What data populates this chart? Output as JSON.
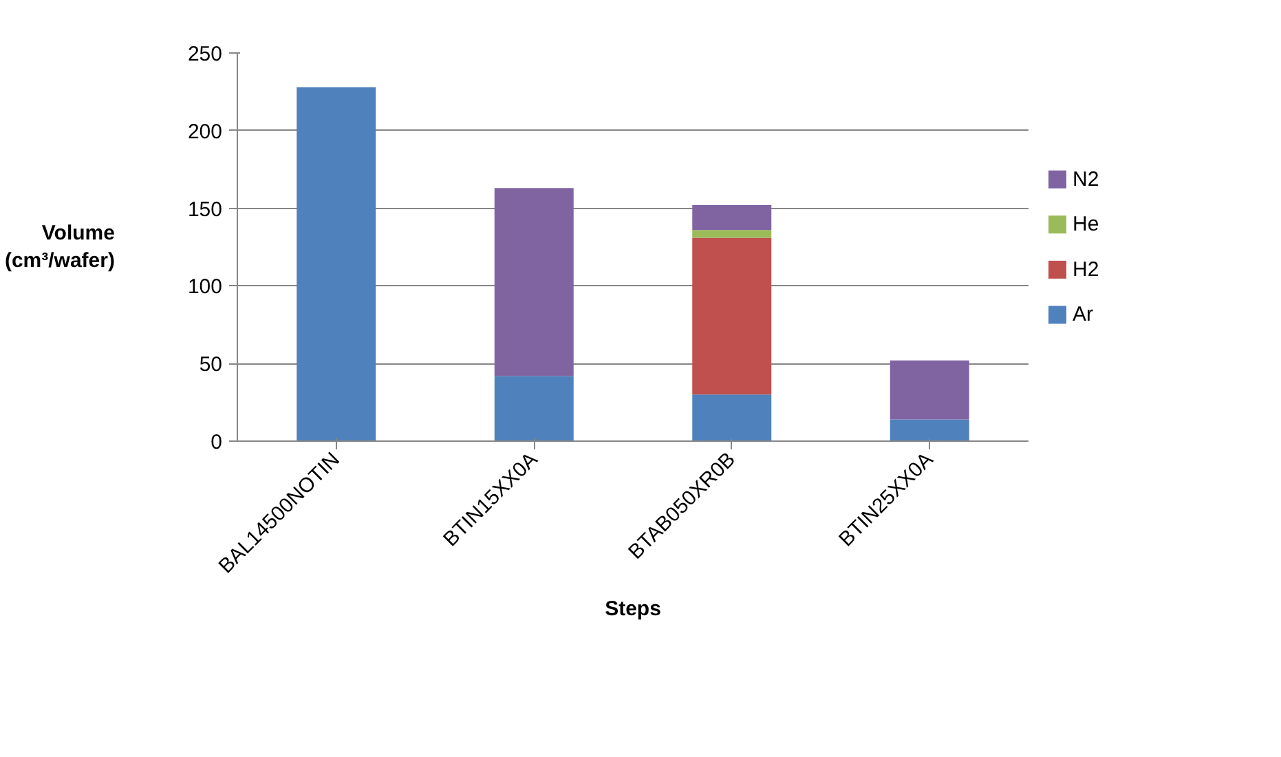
{
  "chart_data": {
    "type": "bar",
    "stacked": true,
    "xlabel": "Steps",
    "ylabel": "Volume\n(cm³/wafer)",
    "categories": [
      "BAL14500NOTIN",
      "BTIN15XX0A",
      "BTAB050XR0B",
      "BTIN25XX0A"
    ],
    "series": [
      {
        "name": "Ar",
        "color": "#4f81bd",
        "values": [
          228,
          42,
          30,
          14
        ]
      },
      {
        "name": "H2",
        "color": "#c0504d",
        "values": [
          null,
          null,
          101,
          null
        ]
      },
      {
        "name": "He",
        "color": "#9bbb59",
        "values": [
          null,
          null,
          5,
          null
        ]
      },
      {
        "name": "N2",
        "color": "#8064a2",
        "values": [
          null,
          121,
          16,
          38
        ]
      }
    ],
    "ylim": [
      0,
      250
    ],
    "yticks": [
      0,
      50,
      100,
      150,
      200,
      250
    ],
    "grid": "y",
    "legend": "right"
  }
}
